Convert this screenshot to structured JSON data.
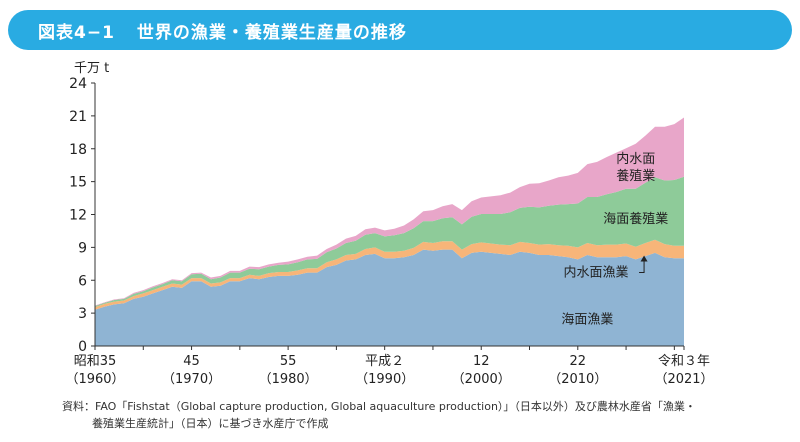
{
  "header": {
    "figure_number": "図表4−1",
    "title": "世界の漁業・養殖業生産量の推移"
  },
  "chart_data": {
    "type": "area",
    "stacked": true,
    "y_unit": "千万 t",
    "ylim": [
      0,
      24
    ],
    "yticks": [
      0,
      3,
      6,
      9,
      12,
      15,
      18,
      21,
      24
    ],
    "x": [
      1960,
      1961,
      1962,
      1963,
      1964,
      1965,
      1966,
      1967,
      1968,
      1969,
      1970,
      1971,
      1972,
      1973,
      1974,
      1975,
      1976,
      1977,
      1978,
      1979,
      1980,
      1981,
      1982,
      1983,
      1984,
      1985,
      1986,
      1987,
      1988,
      1989,
      1990,
      1991,
      1992,
      1993,
      1994,
      1995,
      1996,
      1997,
      1998,
      1999,
      2000,
      2001,
      2002,
      2003,
      2004,
      2005,
      2006,
      2007,
      2008,
      2009,
      2010,
      2011,
      2012,
      2013,
      2014,
      2015,
      2016,
      2017,
      2018,
      2019,
      2020,
      2021
    ],
    "xlim": [
      1960,
      2021
    ],
    "xticks": [
      {
        "x": 1960,
        "line1": "昭和35",
        "line2": "（1960）"
      },
      {
        "x": 1970,
        "line1": "45",
        "line2": "（1970）"
      },
      {
        "x": 1980,
        "line1": "55",
        "line2": "（1980）"
      },
      {
        "x": 1990,
        "line1": "平成２",
        "line2": "（1990）"
      },
      {
        "x": 2000,
        "line1": "12",
        "line2": "（2000）"
      },
      {
        "x": 2010,
        "line1": "22",
        "line2": "（2010）"
      },
      {
        "x": 2021,
        "line1": "令和３年",
        "line2": "（2021）"
      }
    ],
    "series": [
      {
        "name": "海面漁業",
        "color": "#8fb4d3",
        "values": [
          3.3,
          3.6,
          3.8,
          3.9,
          4.3,
          4.5,
          4.8,
          5.1,
          5.4,
          5.3,
          5.9,
          5.9,
          5.4,
          5.5,
          5.9,
          5.9,
          6.2,
          6.1,
          6.3,
          6.4,
          6.4,
          6.5,
          6.7,
          6.7,
          7.2,
          7.4,
          7.8,
          7.9,
          8.3,
          8.4,
          8.0,
          8.0,
          8.1,
          8.3,
          8.8,
          8.7,
          8.8,
          8.8,
          8.0,
          8.5,
          8.6,
          8.5,
          8.4,
          8.3,
          8.6,
          8.5,
          8.3,
          8.3,
          8.2,
          8.1,
          7.9,
          8.3,
          8.1,
          8.1,
          8.1,
          8.2,
          7.9,
          8.2,
          8.5,
          8.1,
          8.0,
          8.0
        ]
      },
      {
        "name": "内水面漁業",
        "color": "#f7b579",
        "values": [
          0.25,
          0.25,
          0.25,
          0.25,
          0.25,
          0.3,
          0.3,
          0.3,
          0.3,
          0.3,
          0.3,
          0.3,
          0.3,
          0.3,
          0.3,
          0.3,
          0.3,
          0.3,
          0.35,
          0.35,
          0.35,
          0.4,
          0.4,
          0.4,
          0.45,
          0.5,
          0.5,
          0.5,
          0.55,
          0.6,
          0.6,
          0.6,
          0.6,
          0.65,
          0.7,
          0.7,
          0.75,
          0.75,
          0.8,
          0.8,
          0.85,
          0.85,
          0.85,
          0.9,
          0.9,
          0.9,
          0.95,
          1.0,
          1.0,
          1.05,
          1.1,
          1.1,
          1.1,
          1.15,
          1.15,
          1.15,
          1.15,
          1.2,
          1.2,
          1.2,
          1.15,
          1.15
        ]
      },
      {
        "name": "海面養殖業",
        "color": "#8ecb99",
        "values": [
          0.1,
          0.1,
          0.15,
          0.15,
          0.2,
          0.2,
          0.25,
          0.25,
          0.3,
          0.3,
          0.35,
          0.4,
          0.4,
          0.45,
          0.5,
          0.5,
          0.55,
          0.6,
          0.6,
          0.65,
          0.7,
          0.75,
          0.8,
          0.85,
          0.9,
          1.0,
          1.1,
          1.2,
          1.3,
          1.3,
          1.4,
          1.5,
          1.6,
          1.8,
          1.9,
          2.0,
          2.1,
          2.2,
          2.3,
          2.5,
          2.6,
          2.7,
          2.8,
          3.0,
          3.1,
          3.3,
          3.4,
          3.5,
          3.7,
          3.8,
          4.0,
          4.2,
          4.4,
          4.6,
          4.8,
          5.0,
          5.3,
          5.5,
          5.7,
          5.8,
          6.0,
          6.3
        ]
      },
      {
        "name": "内水面養殖業",
        "color": "#e8a6c9",
        "values": [
          0.05,
          0.05,
          0.05,
          0.05,
          0.1,
          0.1,
          0.1,
          0.1,
          0.1,
          0.1,
          0.1,
          0.1,
          0.15,
          0.15,
          0.15,
          0.15,
          0.2,
          0.2,
          0.2,
          0.2,
          0.25,
          0.25,
          0.25,
          0.3,
          0.3,
          0.35,
          0.4,
          0.45,
          0.5,
          0.5,
          0.55,
          0.6,
          0.7,
          0.8,
          0.9,
          1.0,
          1.1,
          1.2,
          1.3,
          1.4,
          1.5,
          1.6,
          1.7,
          1.8,
          1.9,
          2.1,
          2.2,
          2.3,
          2.5,
          2.6,
          2.8,
          3.0,
          3.2,
          3.4,
          3.6,
          3.7,
          4.1,
          4.3,
          4.6,
          4.9,
          5.1,
          5.4
        ]
      }
    ],
    "area_labels": [
      {
        "series": "内水面養殖業",
        "lines": [
          "内水面",
          "養殖業"
        ]
      },
      {
        "series": "海面養殖業",
        "lines": [
          "海面養殖業"
        ]
      },
      {
        "series": "内水面漁業",
        "lines": [
          "内水面漁業"
        ]
      },
      {
        "series": "海面漁業",
        "lines": [
          "海面漁業"
        ]
      }
    ]
  },
  "source": {
    "line1": "資料：FAO「Fishstat（Global capture production, Global aquaculture production）」（日本以外）及び農林水産省「漁業・",
    "line2": "養殖業生産統計」（日本）に基づき水産庁で作成"
  }
}
